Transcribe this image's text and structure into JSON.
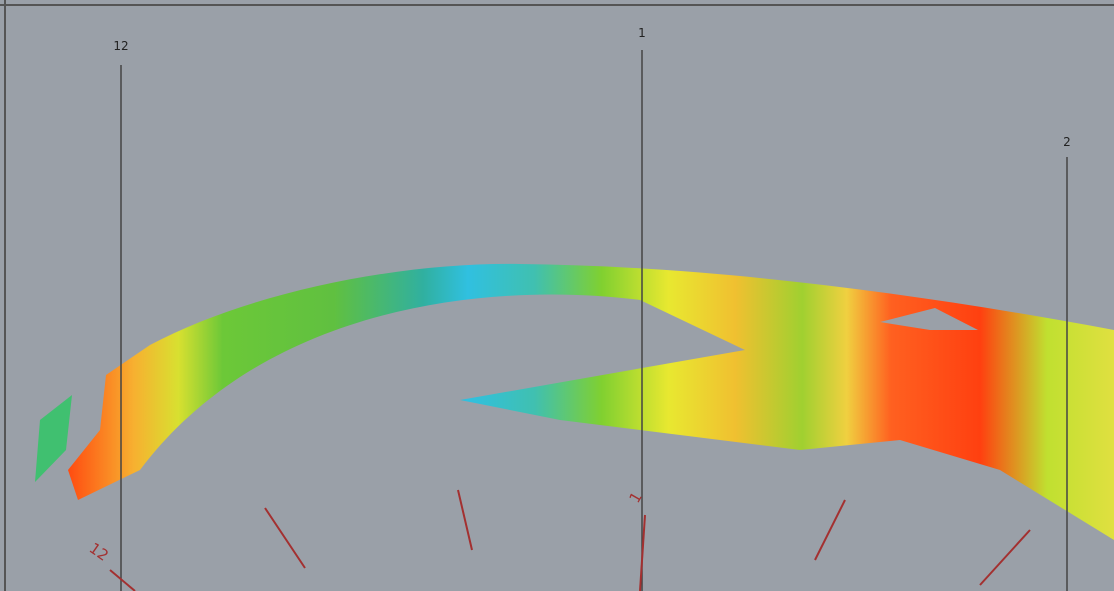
{
  "hour_labels": {
    "left": "12",
    "center": "1",
    "right": "2"
  },
  "markers": {
    "left": "12",
    "center": "1"
  }
}
